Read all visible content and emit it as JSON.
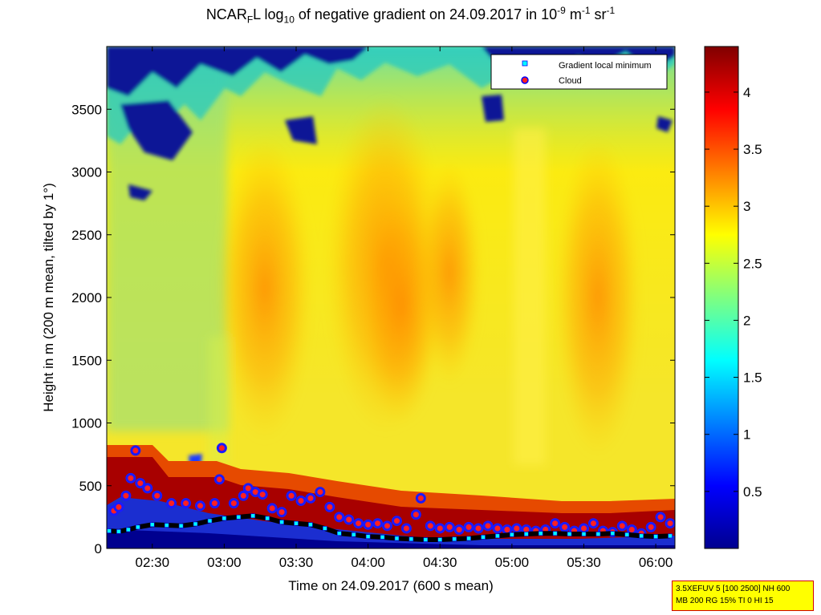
{
  "figure": {
    "title_main": "NCAR",
    "title_sub": "F",
    "title_mid": "L log",
    "title_sub2": "10",
    "title_rest": " of negative gradient on 24.09.2017 in 10",
    "title_sup1": "-9",
    "title_unit1": " m",
    "title_sup2": "-1",
    "title_unit2": " sr",
    "title_sup3": "-1",
    "info_line1": "3.5XEFUV 5 [100 2500] NH 600",
    "info_line2": "MB 200 RG 15% TI 0 HI 15"
  },
  "chart_data": {
    "type": "heatmap",
    "xlabel": "Time on 24.09.2017 (600 s mean)",
    "ylabel": "Height in m (200 m mean, tilted by 1°)",
    "x_ticks": [
      "02:30",
      "03:00",
      "03:30",
      "04:00",
      "04:30",
      "05:00",
      "05:30",
      "06:00"
    ],
    "x_tick_minutes": [
      150,
      180,
      210,
      240,
      270,
      300,
      330,
      360
    ],
    "xlim_minutes": [
      131,
      368
    ],
    "y_ticks": [
      "0",
      "500",
      "1000",
      "1500",
      "2000",
      "2500",
      "3000",
      "3500"
    ],
    "y_tick_values": [
      0,
      500,
      1000,
      1500,
      2000,
      2500,
      3000,
      3500
    ],
    "ylim": [
      0,
      4000
    ],
    "colorbar": {
      "ticks": [
        "0.5",
        "1",
        "1.5",
        "2",
        "2.5",
        "3",
        "3.5",
        "4"
      ],
      "tick_values": [
        0.5,
        1,
        1.5,
        2,
        2.5,
        3,
        3.5,
        4
      ],
      "range": [
        0,
        4.4
      ],
      "colormap": "jet"
    },
    "legend": {
      "placement": "top-right",
      "entries": [
        {
          "label": "Gradient local minimum",
          "marker": "cyan-square"
        },
        {
          "label": "Cloud",
          "marker": "red-circle-blue-edge"
        }
      ]
    },
    "series": [
      {
        "name": "Gradient local minimum",
        "points": [
          [
            132,
            140
          ],
          [
            136,
            135
          ],
          [
            140,
            150
          ],
          [
            144,
            170
          ],
          [
            150,
            190
          ],
          [
            156,
            185
          ],
          [
            162,
            180
          ],
          [
            168,
            195
          ],
          [
            174,
            220
          ],
          [
            180,
            240
          ],
          [
            186,
            250
          ],
          [
            192,
            260
          ],
          [
            198,
            240
          ],
          [
            204,
            210
          ],
          [
            210,
            200
          ],
          [
            216,
            190
          ],
          [
            222,
            160
          ],
          [
            228,
            120
          ],
          [
            234,
            110
          ],
          [
            240,
            95
          ],
          [
            246,
            90
          ],
          [
            252,
            80
          ],
          [
            258,
            75
          ],
          [
            264,
            70
          ],
          [
            270,
            70
          ],
          [
            276,
            75
          ],
          [
            282,
            80
          ],
          [
            288,
            90
          ],
          [
            294,
            100
          ],
          [
            300,
            110
          ],
          [
            306,
            115
          ],
          [
            312,
            120
          ],
          [
            318,
            120
          ],
          [
            324,
            115
          ],
          [
            330,
            115
          ],
          [
            336,
            115
          ],
          [
            342,
            120
          ],
          [
            348,
            110
          ],
          [
            354,
            100
          ],
          [
            360,
            95
          ],
          [
            366,
            100
          ]
        ]
      },
      {
        "name": "Cloud",
        "points": [
          [
            134,
            300
          ],
          [
            136,
            330
          ],
          [
            139,
            420
          ],
          [
            141,
            560
          ],
          [
            143,
            780
          ],
          [
            145,
            520
          ],
          [
            148,
            480
          ],
          [
            152,
            420
          ],
          [
            158,
            360
          ],
          [
            164,
            360
          ],
          [
            170,
            340
          ],
          [
            176,
            360
          ],
          [
            178,
            550
          ],
          [
            179,
            800
          ],
          [
            184,
            360
          ],
          [
            188,
            420
          ],
          [
            190,
            480
          ],
          [
            193,
            450
          ],
          [
            196,
            430
          ],
          [
            200,
            320
          ],
          [
            204,
            290
          ],
          [
            208,
            420
          ],
          [
            212,
            380
          ],
          [
            216,
            400
          ],
          [
            220,
            450
          ],
          [
            224,
            330
          ],
          [
            228,
            250
          ],
          [
            232,
            230
          ],
          [
            236,
            200
          ],
          [
            240,
            190
          ],
          [
            244,
            200
          ],
          [
            248,
            180
          ],
          [
            252,
            220
          ],
          [
            256,
            160
          ],
          [
            260,
            270
          ],
          [
            262,
            400
          ],
          [
            266,
            180
          ],
          [
            270,
            160
          ],
          [
            274,
            170
          ],
          [
            278,
            150
          ],
          [
            282,
            170
          ],
          [
            286,
            160
          ],
          [
            290,
            180
          ],
          [
            294,
            160
          ],
          [
            298,
            150
          ],
          [
            302,
            160
          ],
          [
            306,
            150
          ],
          [
            310,
            140
          ],
          [
            314,
            150
          ],
          [
            318,
            200
          ],
          [
            322,
            170
          ],
          [
            326,
            140
          ],
          [
            330,
            160
          ],
          [
            334,
            200
          ],
          [
            338,
            140
          ],
          [
            342,
            130
          ],
          [
            346,
            180
          ],
          [
            350,
            150
          ],
          [
            354,
            120
          ],
          [
            358,
            170
          ],
          [
            362,
            250
          ],
          [
            366,
            200
          ]
        ]
      }
    ]
  }
}
